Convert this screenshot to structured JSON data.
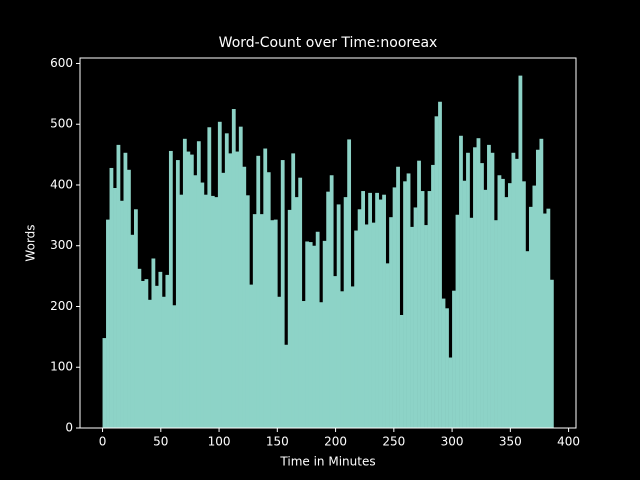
{
  "chart_data": {
    "type": "histogram",
    "title": "Word-Count over Time:nooreax",
    "x_label": "Time in Minutes",
    "y_label": "Words",
    "color": "#8dd3c7",
    "bins": [
      0,
      3,
      6,
      9,
      12,
      15,
      18,
      21,
      24,
      27,
      30,
      33,
      36,
      39,
      42,
      45,
      48,
      51,
      54,
      57,
      60,
      63,
      66,
      69,
      72,
      75,
      78,
      81,
      84,
      87,
      90,
      93,
      96,
      99,
      102,
      105,
      108,
      111,
      114,
      117,
      120,
      123,
      126,
      129,
      132,
      135,
      138,
      141,
      144,
      147,
      150,
      153,
      156,
      159,
      162,
      165,
      168,
      171,
      174,
      177,
      180,
      183,
      186,
      189,
      192,
      195,
      198,
      201,
      204,
      207,
      210,
      213,
      216,
      219,
      222,
      225,
      228,
      231,
      234,
      237,
      240,
      243,
      246,
      249,
      252,
      255,
      258,
      261,
      264,
      267,
      270,
      273,
      276,
      279,
      282,
      285,
      288,
      291,
      294,
      297,
      300,
      303,
      306,
      309,
      312,
      315,
      318,
      321,
      324,
      327,
      330,
      333,
      336,
      339,
      342,
      345,
      348,
      351,
      354,
      357,
      360,
      363,
      366,
      369,
      372,
      375,
      378,
      381,
      384,
      387
    ],
    "values": [
      148,
      343,
      428,
      395,
      466,
      374,
      453,
      425,
      318,
      360,
      262,
      242,
      245,
      211,
      279,
      234,
      257,
      216,
      252,
      456,
      202,
      441,
      384,
      476,
      455,
      450,
      416,
      472,
      404,
      384,
      495,
      382,
      380,
      504,
      420,
      485,
      452,
      525,
      455,
      496,
      430,
      383,
      236,
      352,
      448,
      352,
      460,
      421,
      342,
      343,
      216,
      441,
      137,
      359,
      452,
      380,
      412,
      209,
      307,
      306,
      300,
      323,
      207,
      308,
      389,
      416,
      250,
      368,
      225,
      380,
      475,
      233,
      325,
      360,
      390,
      335,
      387,
      338,
      387,
      376,
      384,
      271,
      347,
      396,
      430,
      186,
      406,
      419,
      331,
      363,
      440,
      390,
      334,
      390,
      433,
      513,
      537,
      213,
      197,
      116,
      226,
      351,
      481,
      407,
      453,
      346,
      462,
      477,
      436,
      392,
      466,
      453,
      342,
      416,
      410,
      380,
      403,
      453,
      443,
      580,
      406,
      291,
      364,
      399,
      458,
      476,
      353,
      361,
      244
    ],
    "xlim": [
      -19.35,
      406.35
    ],
    "ylim": [
      0,
      609
    ],
    "xticks": [
      0,
      50,
      100,
      150,
      200,
      250,
      300,
      350,
      400
    ],
    "yticks": [
      0,
      100,
      200,
      300,
      400,
      500,
      600
    ]
  }
}
